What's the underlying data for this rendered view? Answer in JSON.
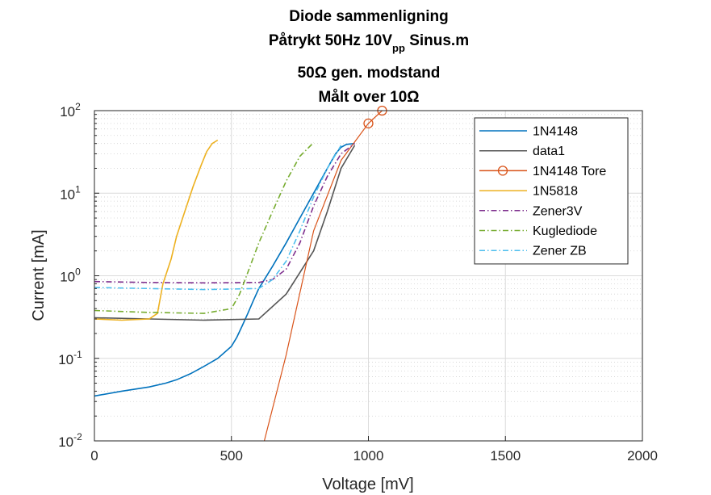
{
  "chart_data": {
    "type": "line",
    "title": [
      "Diode sammenligning",
      "Påtrykt 50Hz 10V",
      "pp",
      " Sinus.m",
      "50Ω gen. modstand",
      "Målt over 10Ω"
    ],
    "xlabel": "Voltage [mV]",
    "ylabel": "Current [mA]",
    "xlim": [
      0,
      2000
    ],
    "ylim": [
      0.01,
      100
    ],
    "yscale": "log",
    "x_ticks": [
      0,
      500,
      1000,
      1500,
      2000
    ],
    "y_ticks": [
      {
        "value": 0.01,
        "base": "10",
        "exp": "-2"
      },
      {
        "value": 0.1,
        "base": "10",
        "exp": "-1"
      },
      {
        "value": 1,
        "base": "10",
        "exp": "0"
      },
      {
        "value": 10,
        "base": "10",
        "exp": "1"
      },
      {
        "value": 100,
        "base": "10",
        "exp": "2"
      }
    ],
    "grid": true,
    "minor_grid": true,
    "legend_position": "top-right",
    "series": [
      {
        "name": "1N4148",
        "color": "#0072BD",
        "style": "solid",
        "x": [
          0,
          100,
          200,
          260,
          300,
          350,
          400,
          450,
          500,
          520,
          540,
          560,
          580,
          600,
          650,
          700,
          750,
          800,
          850,
          880,
          900,
          920,
          950
        ],
        "y": [
          0.035,
          0.04,
          0.045,
          0.05,
          0.055,
          0.065,
          0.08,
          0.1,
          0.14,
          0.18,
          0.25,
          0.35,
          0.5,
          0.7,
          1.3,
          2.5,
          5,
          10,
          20,
          30,
          36,
          39,
          40
        ]
      },
      {
        "name": "data1",
        "color": "#555555",
        "style": "solid",
        "x": [
          0,
          200,
          400,
          600,
          700,
          800,
          850,
          900,
          950
        ],
        "y": [
          0.31,
          0.3,
          0.29,
          0.3,
          0.6,
          2,
          6,
          20,
          38
        ]
      },
      {
        "name": "1N4148 Tore",
        "color": "#D95319",
        "style": "solid-marker",
        "x": [
          620,
          700,
          800,
          900,
          1000,
          1050
        ],
        "y": [
          0.01,
          0.11,
          3.5,
          25,
          70,
          100
        ]
      },
      {
        "name": "1N5818",
        "color": "#EDB120",
        "style": "solid",
        "x": [
          0,
          100,
          200,
          230,
          250,
          280,
          300,
          330,
          360,
          390,
          410,
          430,
          450
        ],
        "y": [
          0.3,
          0.29,
          0.3,
          0.35,
          0.8,
          1.6,
          3,
          6,
          12,
          22,
          32,
          40,
          44
        ]
      },
      {
        "name": "Zener3V",
        "color": "#7E2F8E",
        "style": "dashdot",
        "x": [
          0,
          200,
          400,
          600,
          650,
          700,
          750,
          800,
          850,
          900,
          950
        ],
        "y": [
          0.85,
          0.83,
          0.82,
          0.83,
          0.9,
          1.2,
          2.5,
          7,
          16,
          30,
          40
        ]
      },
      {
        "name": "Kuglediode",
        "color": "#77AC30",
        "style": "dashdot",
        "x": [
          0,
          200,
          400,
          500,
          530,
          560,
          600,
          650,
          700,
          750,
          800
        ],
        "y": [
          0.38,
          0.36,
          0.35,
          0.4,
          0.6,
          1.1,
          2.5,
          6,
          14,
          28,
          41
        ]
      },
      {
        "name": "Zener ZB",
        "color": "#4DBEEE",
        "style": "dashdot",
        "x": [
          0,
          200,
          400,
          600,
          650,
          700,
          750,
          800,
          850,
          900
        ],
        "y": [
          0.72,
          0.7,
          0.68,
          0.7,
          0.9,
          1.5,
          3.5,
          9,
          20,
          38
        ]
      }
    ]
  }
}
